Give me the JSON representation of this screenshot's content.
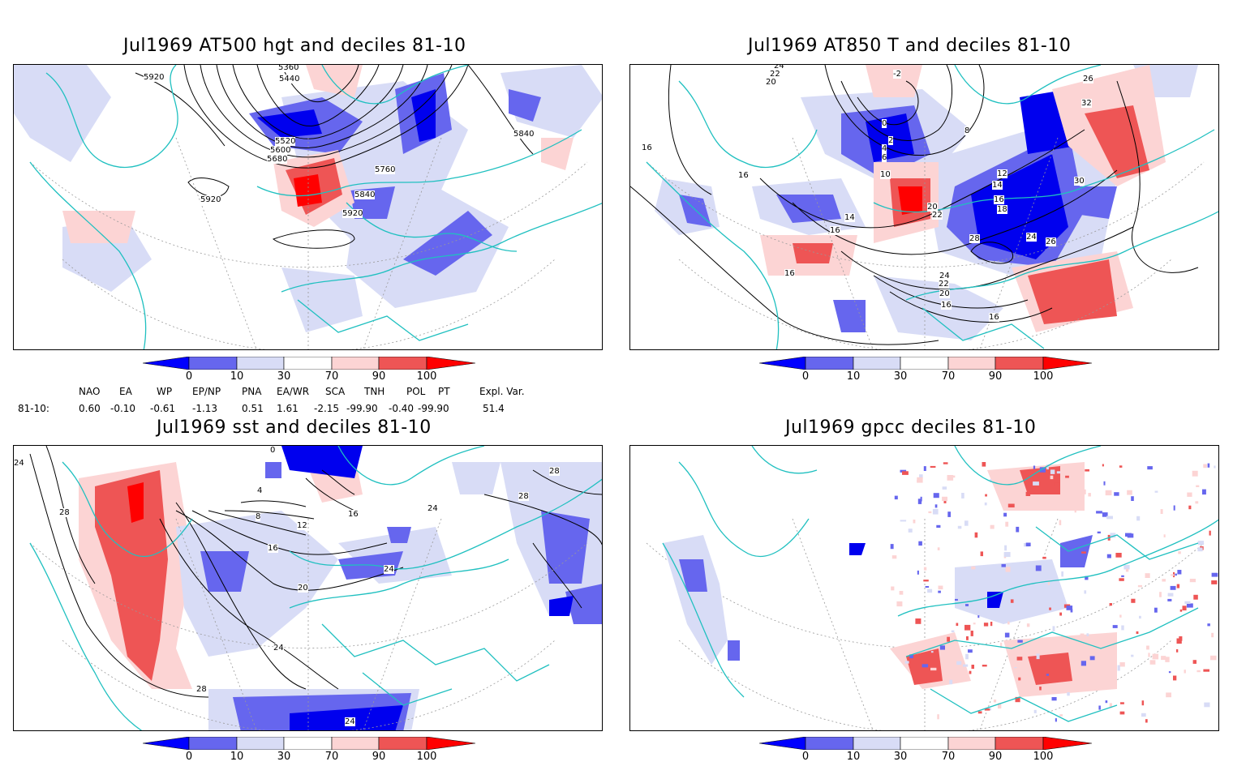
{
  "panels": {
    "p1": {
      "title": "Jul1969 AT500 hgt and deciles 81-10",
      "contours": [
        "5360",
        "5440",
        "5520",
        "5600",
        "5680",
        "5760",
        "5840",
        "5920",
        "5920",
        "5920",
        "5840"
      ]
    },
    "p2": {
      "title": "Jul1969 AT850 T and deciles 81-10",
      "contours": [
        "24",
        "22",
        "20",
        "-2",
        "0",
        "2",
        "4",
        "6",
        "8",
        "10",
        "12",
        "14",
        "16",
        "18",
        "20",
        "22",
        "24",
        "26",
        "28",
        "30",
        "32",
        "26",
        "14",
        "16",
        "16",
        "16",
        "16",
        "22",
        "24",
        "20",
        "16",
        "16"
      ]
    },
    "p3": {
      "title": "Jul1969 sst and deciles 81-10",
      "contours": [
        "24",
        "28",
        "28",
        "24",
        "20",
        "16",
        "12",
        "8",
        "16",
        "24",
        "28",
        "28",
        "24",
        "24",
        "0",
        "4"
      ]
    },
    "p4": {
      "title": "Jul1969 gpcc deciles 81-10"
    }
  },
  "colorbar": {
    "ticks": [
      "0",
      "10",
      "30",
      "70",
      "90",
      "100"
    ],
    "colors": [
      "#0000ff",
      "#6666ee",
      "#d8dcf6",
      "#ffffff",
      "#fcd4d4",
      "#ee5555",
      "#ff0000"
    ]
  },
  "indices": {
    "headers": [
      "NAO",
      "EA",
      "WP",
      "EP/NP",
      "PNA",
      "EA/WR",
      "SCA",
      "TNH",
      "POL",
      "PT",
      "Expl. Var."
    ],
    "row_label": "81-10:",
    "values": [
      "0.60",
      "-0.10",
      "-0.61",
      "-1.13",
      "0.51",
      "1.61",
      "-2.15",
      "-99.90",
      "-0.40",
      "-99.90",
      "51.4"
    ]
  },
  "colors": {
    "coast": "#20c0c0",
    "blue_light": "#d8dcf6",
    "blue_mid": "#6666ee",
    "blue_dark": "#0000ee",
    "red_light": "#fcd4d4",
    "red_mid": "#ee5555",
    "red_dark": "#ff0000"
  }
}
